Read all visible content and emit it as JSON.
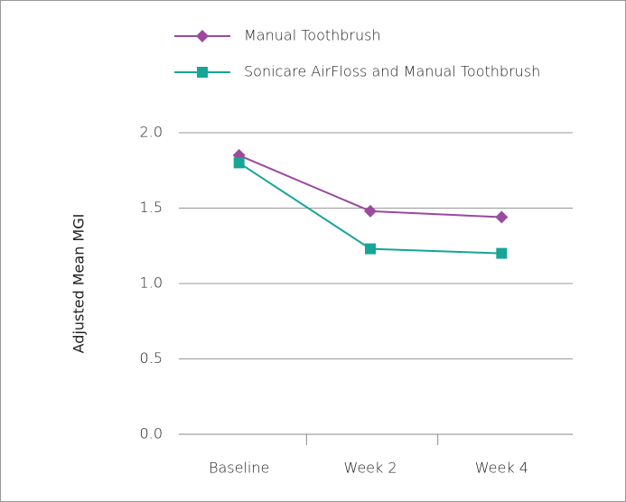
{
  "chart_data": {
    "type": "line",
    "y_label": "Adjusted Mean MGI",
    "categories": [
      "Baseline",
      "Week 2",
      "Week 4"
    ],
    "series": [
      {
        "name": "Manual Toothbrush",
        "color": "#9b4a9e",
        "marker": "diamond",
        "values": [
          1.85,
          1.48,
          1.44
        ]
      },
      {
        "name": "Sonicare AirFloss and Manual Toothbrush",
        "color": "#16a596",
        "marker": "square",
        "values": [
          1.8,
          1.23,
          1.2
        ]
      }
    ],
    "ylim": [
      0,
      2
    ],
    "yticks": [
      {
        "value": 0,
        "label": "0.0"
      },
      0.5,
      {
        "value": 1,
        "label": "1.0"
      },
      1.5,
      {
        "value": 2,
        "label": "2.0"
      }
    ],
    "grid": true,
    "legend": "top"
  }
}
